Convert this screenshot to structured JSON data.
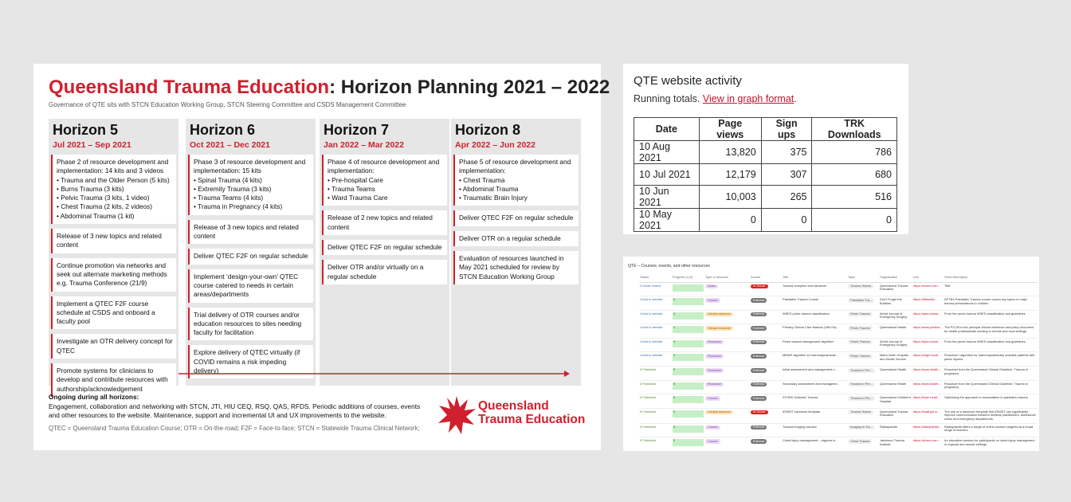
{
  "planning": {
    "title_highlight": "Queensland Trauma Education",
    "title_rest": ": Horizon Planning 2021 – 2022",
    "subtitle": "Governance of QTE sits with STCN Education Working Group, STCN Steering Committee and CSDS Management Committee",
    "horizons": [
      {
        "name": "Horizon 5",
        "dates": "Jul 2021 – Sep 2021",
        "items": [
          {
            "text": "Phase 2 of resource development and implementation: 14 kits and 3 videos",
            "bullets": [
              "Trauma and the Older Person (5 kits)",
              "Burns Trauma (3 kits)",
              "Pelvic Trauma (3 kits, 1 video)",
              "Chest Trauma (2 kits, 2 videos)",
              "Abdominal Trauma (1 kit)"
            ]
          },
          {
            "text": "Release of 3 new topics and related content"
          },
          {
            "text": "Continue promotion via networks and seek out alternate marketing methods e.g. Trauma Conference (21/9)"
          },
          {
            "text": "Implement a QTEC F2F course schedule at CSDS and onboard a faculty pool"
          },
          {
            "text": "Investigate an OTR delivery concept for QTEC"
          },
          {
            "text": "Promote systems for clinicians to develop and contribute resources with authorship/acknowledgement"
          }
        ]
      },
      {
        "name": "Horizon 6",
        "dates": "Oct 2021 – Dec 2021",
        "items": [
          {
            "text": "Phase 3 of resource development and implementation: 15 kits",
            "bullets": [
              "Spinal Trauma (4 kits)",
              "Extremity Trauma (3 kits)",
              "Trauma Teams (4 kits)",
              "Trauma in Pregnancy (4 kits)"
            ]
          },
          {
            "text": "Release of 3 new topics and related content"
          },
          {
            "text": "Deliver QTEC F2F on regular schedule"
          },
          {
            "text": "Implement ‘design-your-own’ QTEC course catered to needs in certain areas/departments"
          },
          {
            "text": "Trial delivery of OTR courses and/or education resources to sites needing faculty for facilitation"
          },
          {
            "text": "Explore delivery of QTEC virtually (if COVID remains a risk impeding delivery)"
          }
        ]
      },
      {
        "name": "Horizon 7",
        "dates": "Jan 2022 – Mar 2022",
        "items": [
          {
            "text": "Phase 4 of resource development and implementation:",
            "bullets": [
              "Pre-hospital Care",
              "Trauma Teams",
              "Ward Trauma Care"
            ]
          },
          {
            "text": "Release of 2 new topics and related content"
          },
          {
            "text": "Deliver QTEC F2F on regular schedule"
          },
          {
            "text": "Deliver OTR and/or virtually on a regular schedule"
          }
        ]
      },
      {
        "name": "Horizon 8",
        "dates": "Apr 2022 – Jun 2022",
        "items": [
          {
            "text": "Phase 5 of resource development and implementation:",
            "bullets": [
              "Chest Trauma",
              "Abdominal Trauma",
              "Traumatic Brain Injury"
            ]
          },
          {
            "text": "Deliver QTEC F2F on regular schedule"
          },
          {
            "text": "Deliver OTR on a regular schedule"
          },
          {
            "text": "Evaluation of resources launched in May 2021 scheduled for review by STCN Education Working Group"
          }
        ]
      }
    ],
    "ongoing_heading": "Ongoing during all horizons:",
    "ongoing_text": "Engagement, collaboration and networking with STCN, JTI, HIU CEQ, RSQ, QAS, RFDS. Periodic additions of courses, events and other resources to the website. Maintenance, support and incremental UI and UX improvements to the website.",
    "footnote": "QTEC = Queensland Trauma Education Course; OTR = On-the-road; F2F = Face-to-face; STCN = Statewide Trauma Clinical Network;",
    "logo_line1": "Queensland",
    "logo_line2": "Trauma Education"
  },
  "activity": {
    "title": "QTE website activity",
    "intro": "Running totals. ",
    "link": "View in graph format",
    "intro_end": ".",
    "headers": [
      "Date",
      "Page views",
      "Sign ups",
      "TRK Downloads"
    ],
    "rows": [
      [
        "10 Aug 2021",
        "13,820",
        "375",
        "786"
      ],
      [
        "10 Jul 2021",
        "12,179",
        "307",
        "680"
      ],
      [
        "10 Jun 2021",
        "10,003",
        "265",
        "516"
      ],
      [
        "10 May 2021",
        "0",
        "0",
        "0"
      ]
    ]
  },
  "resources": {
    "title": "QTE – Courses, events, and other resources",
    "headers": [
      "Status",
      "Progress (1-5)",
      "Type of resource",
      "Source",
      "Title",
      "Topic",
      "Organisation",
      "Link",
      "Short description"
    ],
    "rows": [
      [
        "3 Under review",
        "",
        "Video",
        "In House",
        "Trauma reception and handover",
        "Trauma Teams",
        "Queensland Trauma Education",
        "https://vimeo.com...",
        "TBA"
      ],
      [
        "4 Add to website",
        "4",
        "Course",
        "External",
        "Paediatric Trauma Course",
        "Paediatric Tra...",
        "Don't Forget the Bubbles",
        "https://dftbskills...",
        "DFTB's Paediatric Trauma course covers key topics in major trauma presentations in children."
      ],
      [
        "4 Add to website",
        "4",
        "Clinical resource",
        "External",
        "WSES pelvic trauma classification",
        "Pelvic Trauma",
        "World Journal of Emergency Surgery",
        "https://wjes.biome...",
        "From the pelvic trauma WSES classification and guidelines"
      ],
      [
        "4 Add to website",
        "4",
        "Clinical resource",
        "External",
        "Primary Clinical Care Manual (10th Ed)...",
        "Pelvic Trauma",
        "Queensland Health",
        "https://www.publica...",
        "The PCCM is the principal clinical reference and policy document for health professionals working in remote and rural settings."
      ],
      [
        "4 Add to website",
        "4",
        "Flowchart",
        "External",
        "Pelvic trauma management algorithm",
        "Pelvic Trauma",
        "World Journal of Emergency Surgery",
        "https://wjes.biome...",
        "From the pelvic trauma WSES classification and guidelines"
      ],
      [
        "4 Add to website",
        "4",
        "Flowchart",
        "External",
        "MBWH algorithm for haemodynamicall...",
        "Pelvic Trauma",
        "Metro North Hospital and Health Service",
        "https://origin.healt...",
        "Flowchart / algorithm for haemodynamically unstable patients with pelvic injuries"
      ],
      [
        "5 Published",
        "5",
        "Flowchart",
        "External",
        "Initial assessment and management o...",
        "Trauma in Pre...",
        "Queensland Health",
        "https://www.health...",
        "Flowchart from the Queensland Clinical Guideline: Trauma in pregnancy"
      ],
      [
        "5 Published",
        "5",
        "Flowchart",
        "External",
        "Secondary assessment and manageme...",
        "Trauma in Pre...",
        "Queensland Health",
        "https://www.health...",
        "Flowchart from the Queensland Clinical Guideline: Trauma in pregnancy"
      ],
      [
        "5 Published",
        "5",
        "Course",
        "External",
        "STORK Obstetric Trauma",
        "Trauma in Pre...",
        "Queensland Children's Hospital",
        "https://learn.healt...",
        "Optimising the approach to resuscitation in paediatric trauma"
      ],
      [
        "5 Published",
        "5",
        "Clinical resource",
        "In House",
        "ATMIST handover template",
        "Trauma Teams",
        "Queensland Trauma Education",
        "https://heathgd.m...",
        "The use of a handover template like ATMIST can significantly improve communication between medical practitioners, ambulance crews and emergency departments."
      ],
      [
        "5 Published",
        "5",
        "Course",
        "External",
        "Trauma imaging courses",
        "Imaging in Tra...",
        "Radiopaedia",
        "https://radiopaedia...",
        "Radiopaedia offers a range of online courses targeted at a broad range of learners."
      ],
      [
        "5 Published",
        "5",
        "Course",
        "External",
        "Chest injury management – regional a...",
        "Chest Trauma",
        "Jamieson Trauma Institute",
        "https://vimeo.com...",
        "An education session for participants on chest injury management in regional and remote settings."
      ]
    ]
  }
}
